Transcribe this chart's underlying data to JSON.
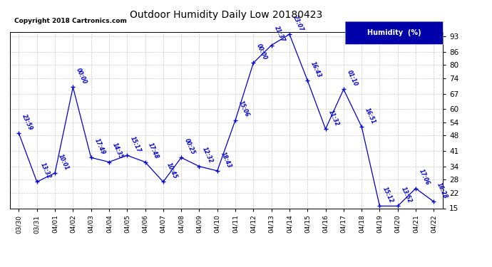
{
  "title": "Outdoor Humidity Daily Low 20180423",
  "copyright": "Copyright 2018 Cartronics.com",
  "legend_label": "Humidity  (%)",
  "ylim": [
    15,
    95
  ],
  "yticks": [
    15,
    22,
    28,
    34,
    41,
    48,
    54,
    60,
    67,
    74,
    80,
    86,
    93
  ],
  "line_color": "#0000cc",
  "background_color": "#ffffff",
  "grid_color": "#bbbbbb",
  "points": [
    {
      "date": "03/30",
      "value": 49,
      "time": "23:59"
    },
    {
      "date": "03/31",
      "value": 27,
      "time": "13:32"
    },
    {
      "date": "04/01",
      "value": 31,
      "time": "10:01"
    },
    {
      "date": "04/02",
      "value": 70,
      "time": "00:00"
    },
    {
      "date": "04/03",
      "value": 38,
      "time": "17:49"
    },
    {
      "date": "04/04",
      "value": 36,
      "time": "14:35"
    },
    {
      "date": "04/05",
      "value": 39,
      "time": "15:17"
    },
    {
      "date": "04/06",
      "value": 36,
      "time": "17:48"
    },
    {
      "date": "04/07",
      "value": 27,
      "time": "10:45"
    },
    {
      "date": "04/08",
      "value": 38,
      "time": "00:25"
    },
    {
      "date": "04/09",
      "value": 34,
      "time": "12:32"
    },
    {
      "date": "04/10",
      "value": 32,
      "time": "18:43"
    },
    {
      "date": "04/11",
      "value": 55,
      "time": "15:06"
    },
    {
      "date": "04/12",
      "value": 81,
      "time": "00:00"
    },
    {
      "date": "04/13",
      "value": 89,
      "time": "21:37"
    },
    {
      "date": "04/14",
      "value": 94,
      "time": "23:07"
    },
    {
      "date": "04/15",
      "value": 73,
      "time": "16:43"
    },
    {
      "date": "04/16",
      "value": 51,
      "time": "11:32"
    },
    {
      "date": "04/17",
      "value": 69,
      "time": "01:10"
    },
    {
      "date": "04/18",
      "value": 52,
      "time": "16:51"
    },
    {
      "date": "04/19",
      "value": 16,
      "time": "15:12"
    },
    {
      "date": "04/20",
      "value": 16,
      "time": "13:52"
    },
    {
      "date": "04/21",
      "value": 24,
      "time": "17:06"
    },
    {
      "date": "04/22",
      "value": 18,
      "time": "16:28"
    }
  ]
}
